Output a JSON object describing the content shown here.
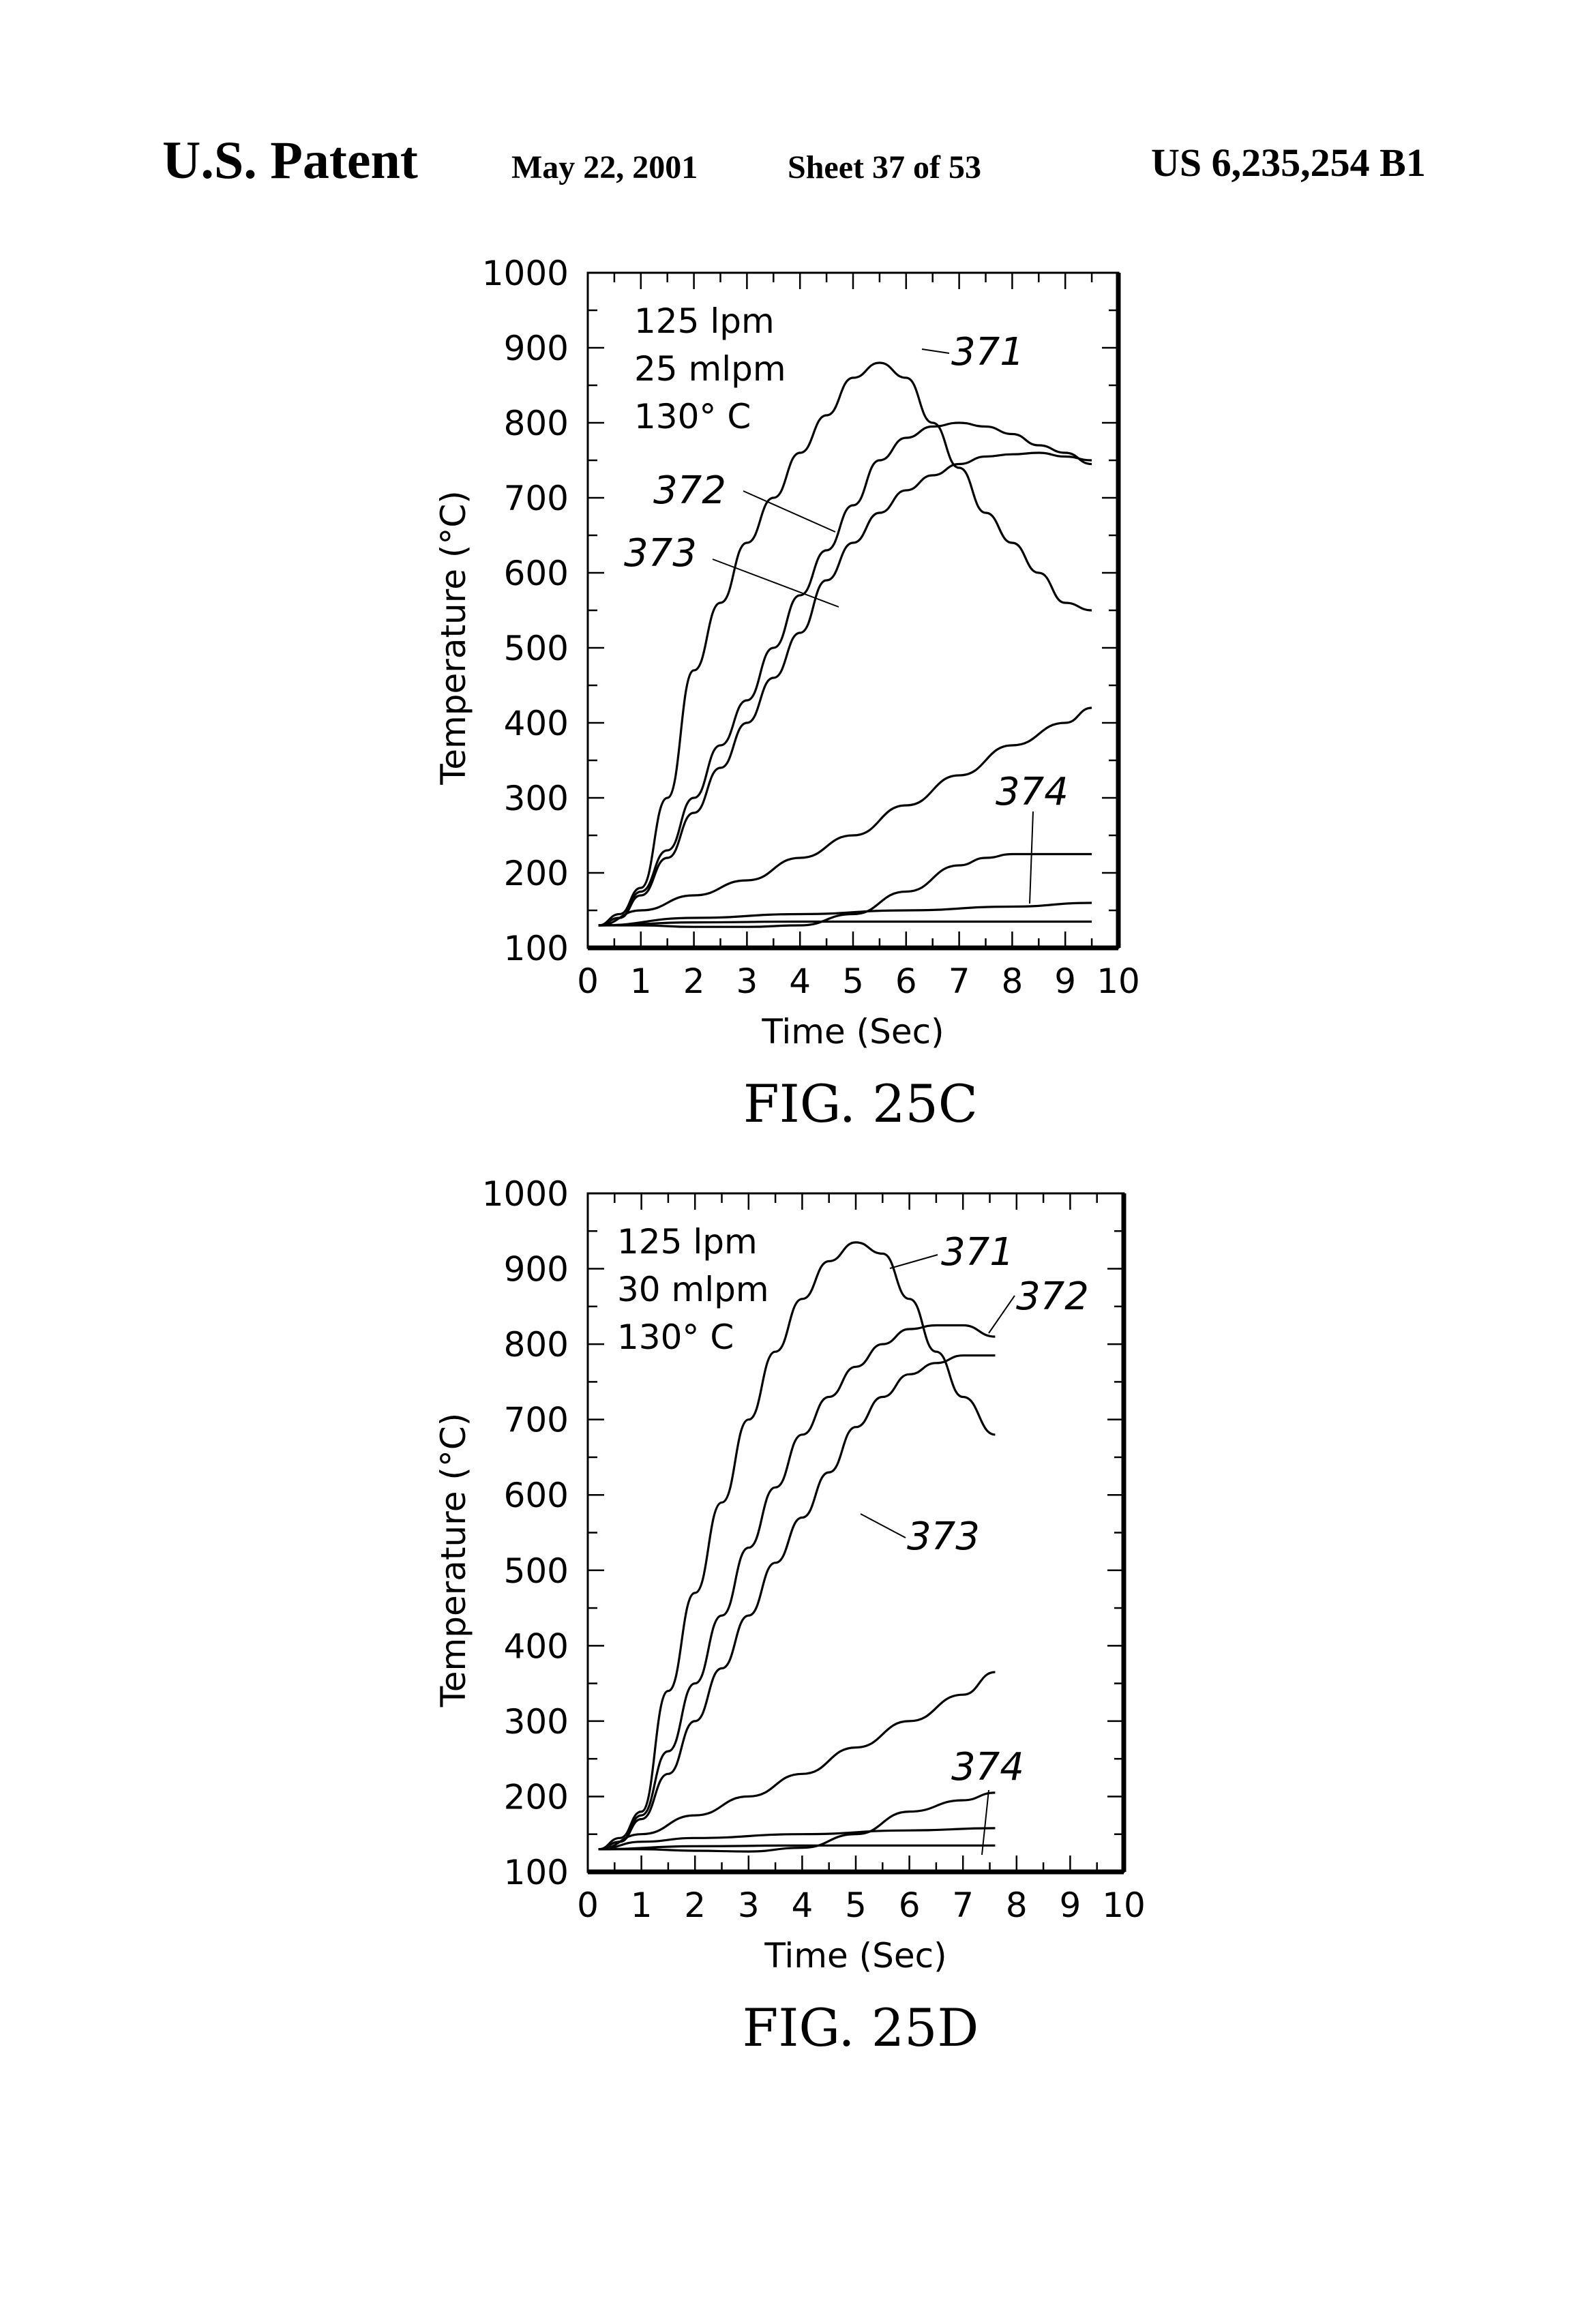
{
  "header": {
    "left": "U.S. Patent",
    "date": "May 22, 2001",
    "sheet": "Sheet 37 of 53",
    "patent_number": "US 6,235,254 B1"
  },
  "chart_data": [
    {
      "type": "line",
      "figure_label": "FIG. 25C",
      "xlabel": "Time (Sec)",
      "ylabel": "Temperature (°C)",
      "xlim": [
        0,
        10
      ],
      "ylim": [
        100,
        1000
      ],
      "xticks": [
        "0",
        "1",
        "2",
        "3",
        "4",
        "5",
        "6",
        "7",
        "8",
        "9",
        "10"
      ],
      "yticks": [
        "100",
        "200",
        "300",
        "400",
        "500",
        "600",
        "700",
        "800",
        "900",
        "1000"
      ],
      "annotation": [
        "125 lpm",
        "25 mlpm",
        "130° C"
      ],
      "grid": false,
      "curve_labels": [
        "371",
        "372",
        "373",
        "374"
      ],
      "series": [
        {
          "name": "371",
          "x": [
            0.2,
            0.6,
            1.0,
            1.5,
            2.0,
            2.5,
            3.0,
            3.5,
            4.0,
            4.5,
            5.0,
            5.5,
            6.0,
            6.5,
            7.0,
            7.5,
            8.0,
            8.5,
            9.0,
            9.5
          ],
          "y": [
            130,
            145,
            180,
            300,
            470,
            560,
            640,
            700,
            760,
            810,
            860,
            880,
            860,
            800,
            740,
            680,
            640,
            600,
            560,
            550
          ]
        },
        {
          "name": "372",
          "x": [
            0.2,
            0.6,
            1.0,
            1.5,
            2.0,
            2.5,
            3.0,
            3.5,
            4.0,
            4.5,
            5.0,
            5.5,
            6.0,
            6.5,
            7.0,
            7.5,
            8.0,
            8.5,
            9.0,
            9.5
          ],
          "y": [
            130,
            140,
            175,
            230,
            300,
            370,
            430,
            500,
            570,
            630,
            690,
            750,
            780,
            795,
            800,
            795,
            785,
            770,
            760,
            745
          ]
        },
        {
          "name": "373",
          "x": [
            0.2,
            0.6,
            1.0,
            1.5,
            2.0,
            2.5,
            3.0,
            3.5,
            4.0,
            4.5,
            5.0,
            5.5,
            6.0,
            6.5,
            7.0,
            7.5,
            8.0,
            8.5,
            9.0,
            9.5
          ],
          "y": [
            130,
            140,
            170,
            220,
            280,
            340,
            400,
            460,
            520,
            590,
            640,
            680,
            710,
            730,
            745,
            755,
            758,
            760,
            755,
            750
          ]
        },
        {
          "name": "374",
          "x": [
            0.2,
            1,
            2,
            3,
            4,
            5,
            6,
            7,
            8,
            9,
            9.5
          ],
          "y": [
            130,
            150,
            170,
            190,
            220,
            250,
            290,
            330,
            370,
            400,
            420
          ]
        },
        {
          "name": "374",
          "x": [
            0.2,
            1,
            2,
            3,
            4,
            5,
            6,
            7,
            7.5,
            8,
            9,
            9.5
          ],
          "y": [
            130,
            130,
            128,
            128,
            130,
            145,
            175,
            210,
            220,
            225,
            225,
            225
          ]
        },
        {
          "name": "374",
          "x": [
            0.2,
            2,
            4,
            6,
            8,
            9.5
          ],
          "y": [
            130,
            140,
            145,
            150,
            155,
            160
          ]
        },
        {
          "name": "374",
          "x": [
            0.2,
            2,
            4,
            6,
            8,
            9.5
          ],
          "y": [
            130,
            134,
            135,
            135,
            135,
            135
          ]
        }
      ]
    },
    {
      "type": "line",
      "figure_label": "FIG. 25D",
      "xlabel": "Time (Sec)",
      "ylabel": "Temperature (°C)",
      "xlim": [
        0,
        10
      ],
      "ylim": [
        100,
        1000
      ],
      "xticks": [
        "0",
        "1",
        "2",
        "3",
        "4",
        "5",
        "6",
        "7",
        "8",
        "9",
        "10"
      ],
      "yticks": [
        "100",
        "200",
        "300",
        "400",
        "500",
        "600",
        "700",
        "800",
        "900",
        "1000"
      ],
      "annotation": [
        "125 lpm",
        "30 mlpm",
        "130° C"
      ],
      "grid": false,
      "curve_labels": [
        "371",
        "372",
        "373",
        "374"
      ],
      "series": [
        {
          "name": "371",
          "x": [
            0.2,
            0.6,
            1.0,
            1.5,
            2.0,
            2.5,
            3.0,
            3.5,
            4.0,
            4.5,
            5.0,
            5.5,
            6.0,
            6.5,
            7.0,
            7.6
          ],
          "y": [
            130,
            145,
            180,
            340,
            470,
            590,
            700,
            790,
            860,
            910,
            935,
            920,
            860,
            790,
            730,
            680
          ]
        },
        {
          "name": "372",
          "x": [
            0.2,
            0.6,
            1.0,
            1.5,
            2.0,
            2.5,
            3.0,
            3.5,
            4.0,
            4.5,
            5.0,
            5.5,
            6.0,
            6.5,
            7.0,
            7.6
          ],
          "y": [
            130,
            140,
            175,
            260,
            350,
            440,
            530,
            610,
            680,
            730,
            770,
            800,
            820,
            825,
            825,
            810
          ]
        },
        {
          "name": "373",
          "x": [
            0.2,
            0.6,
            1.0,
            1.5,
            2.0,
            2.5,
            3.0,
            3.5,
            4.0,
            4.5,
            5.0,
            5.5,
            6.0,
            6.5,
            7.0,
            7.6
          ],
          "y": [
            130,
            140,
            170,
            230,
            300,
            370,
            440,
            510,
            570,
            630,
            690,
            730,
            760,
            775,
            785,
            785
          ]
        },
        {
          "name": "374",
          "x": [
            0.2,
            1,
            2,
            3,
            4,
            5,
            6,
            7,
            7.6
          ],
          "y": [
            130,
            150,
            175,
            200,
            230,
            265,
            300,
            335,
            365
          ]
        },
        {
          "name": "374",
          "x": [
            0.2,
            1,
            2,
            3,
            4,
            5,
            6,
            7,
            7.6
          ],
          "y": [
            130,
            130,
            128,
            127,
            132,
            150,
            180,
            195,
            205
          ]
        },
        {
          "name": "374",
          "x": [
            0.2,
            1,
            2,
            4,
            6,
            7.6
          ],
          "y": [
            130,
            140,
            145,
            150,
            155,
            158
          ]
        },
        {
          "name": "374",
          "x": [
            0.2,
            2,
            4,
            6,
            7.6
          ],
          "y": [
            130,
            134,
            135,
            135,
            135
          ]
        }
      ]
    }
  ]
}
